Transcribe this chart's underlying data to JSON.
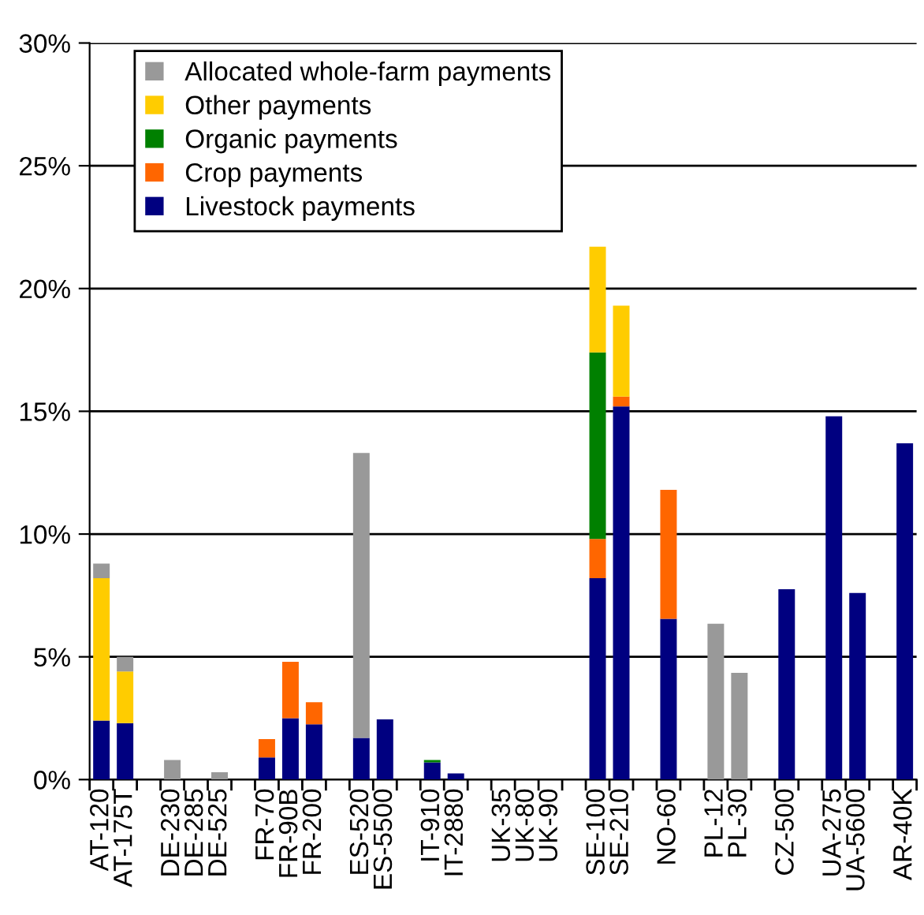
{
  "chart_data": {
    "type": "bar",
    "stacked": true,
    "categories": [
      "AT-120",
      "AT-175T",
      null,
      "DE-230",
      "DE-285",
      "DE-525",
      null,
      "FR-70",
      "FR-90B",
      "FR-200",
      null,
      "ES-520",
      "ES-5500",
      null,
      "IT-910",
      "IT-2880",
      null,
      "UK-35",
      "UK-80",
      "UK-90",
      null,
      "SE-100",
      "SE-210",
      null,
      "NO-60",
      null,
      "PL-12",
      "PL-30",
      null,
      "CZ-500",
      null,
      "UA-275",
      "UA-5600",
      null,
      "AR-40K"
    ],
    "series": [
      {
        "name": "Livestock payments",
        "color": "#000080",
        "values": [
          2.4,
          2.3,
          null,
          0,
          0,
          0,
          null,
          0.9,
          2.5,
          2.25,
          null,
          1.7,
          2.45,
          null,
          0.7,
          0.25,
          null,
          0,
          0,
          0,
          null,
          8.2,
          15.2,
          null,
          6.55,
          null,
          0,
          0,
          null,
          7.75,
          null,
          14.8,
          7.6,
          null,
          13.7
        ]
      },
      {
        "name": "Crop payments",
        "color": "#ff6600",
        "values": [
          0,
          0,
          null,
          0,
          0,
          0,
          null,
          0.75,
          2.3,
          0.9,
          null,
          0,
          0,
          null,
          0,
          0,
          null,
          0,
          0,
          0,
          null,
          1.6,
          0.4,
          null,
          5.25,
          null,
          0,
          0,
          null,
          0,
          null,
          0,
          0,
          null,
          0
        ]
      },
      {
        "name": "Organic payments",
        "color": "#008000",
        "values": [
          0,
          0,
          null,
          0,
          0,
          0,
          null,
          0,
          0,
          0,
          null,
          0,
          0,
          null,
          0.1,
          0,
          null,
          0,
          0,
          0,
          null,
          7.6,
          0,
          null,
          0,
          null,
          0,
          0,
          null,
          0,
          null,
          0,
          0,
          null,
          0
        ]
      },
      {
        "name": "Other payments",
        "color": "#ffcc00",
        "values": [
          5.8,
          2.1,
          null,
          0,
          0,
          0,
          null,
          0,
          0,
          0,
          null,
          0,
          0,
          null,
          0,
          0,
          null,
          0,
          0,
          0,
          null,
          4.3,
          3.7,
          null,
          0,
          null,
          0,
          0,
          null,
          0,
          null,
          0,
          0,
          null,
          0
        ]
      },
      {
        "name": "Allocated whole-farm payments",
        "color": "#999999",
        "values": [
          0.6,
          0.6,
          null,
          0.8,
          0,
          0.3,
          null,
          0,
          0,
          0,
          null,
          11.6,
          0,
          null,
          0,
          0,
          null,
          0,
          0,
          0,
          null,
          0,
          0,
          null,
          0,
          null,
          6.35,
          4.35,
          null,
          0,
          null,
          0,
          0,
          null,
          0
        ]
      }
    ],
    "ylim": [
      0,
      30
    ],
    "yticks": [
      {
        "value": 0,
        "label": "0%"
      },
      {
        "value": 5,
        "label": "5%"
      },
      {
        "value": 10,
        "label": "10%"
      },
      {
        "value": 15,
        "label": "15%"
      },
      {
        "value": 20,
        "label": "20%"
      },
      {
        "value": 25,
        "label": "25%"
      },
      {
        "value": 30,
        "label": "30%"
      }
    ],
    "grid": "y",
    "legend": "top left"
  }
}
